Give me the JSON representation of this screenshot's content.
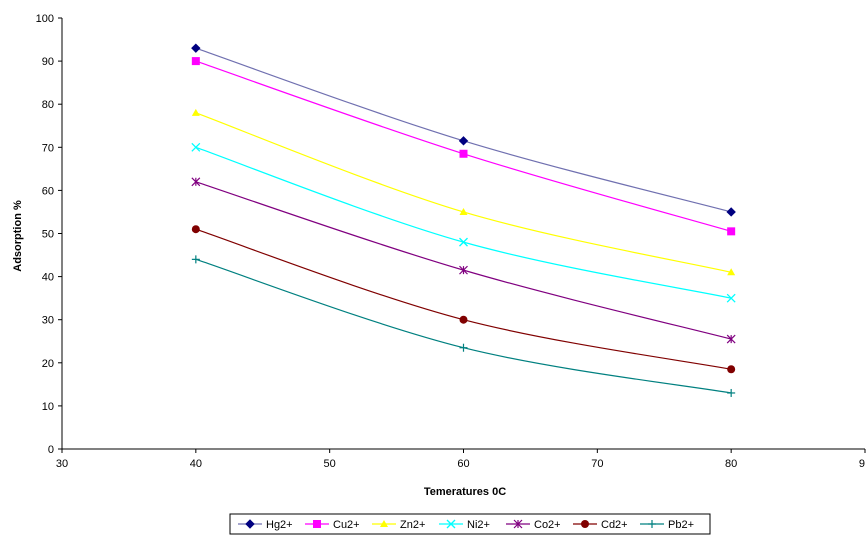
{
  "chart_data": {
    "type": "line",
    "xlabel": "Temeratures 0C",
    "ylabel": "Adsorption %",
    "xlim": [
      30,
      90
    ],
    "ylim": [
      0,
      100
    ],
    "x_ticks": [
      "30",
      "40",
      "50",
      "60",
      "70",
      "80",
      "9"
    ],
    "y_ticks": [
      "0",
      "10",
      "20",
      "30",
      "40",
      "50",
      "60",
      "70",
      "80",
      "90",
      "100"
    ],
    "grid": false,
    "legend_position": "bottom",
    "x": [
      40,
      60,
      80
    ],
    "series": [
      {
        "name": "Hg2+",
        "values": [
          93,
          71.5,
          55
        ],
        "color": "#000080",
        "marker": "diamond",
        "line_color": "#7070b0"
      },
      {
        "name": "Cu2+",
        "values": [
          90,
          68.5,
          50.5
        ],
        "color": "#ff00ff",
        "marker": "square",
        "line_color": "#ff00ff"
      },
      {
        "name": "Zn2+",
        "values": [
          78,
          55,
          41
        ],
        "color": "#ffff00",
        "marker": "triangle",
        "line_color": "#ffff00"
      },
      {
        "name": "Ni2+",
        "values": [
          70,
          48,
          35
        ],
        "color": "#00ffff",
        "marker": "x",
        "line_color": "#00ffff"
      },
      {
        "name": "Co2+",
        "values": [
          62,
          41.5,
          25.5
        ],
        "color": "#800080",
        "marker": "star",
        "line_color": "#800080"
      },
      {
        "name": "Cd2+",
        "values": [
          51,
          30,
          18.5
        ],
        "color": "#800000",
        "marker": "circle",
        "line_color": "#800000"
      },
      {
        "name": "Pb2+",
        "values": [
          44,
          23.5,
          13
        ],
        "color": "#008080",
        "marker": "plus",
        "line_color": "#008080"
      }
    ]
  }
}
